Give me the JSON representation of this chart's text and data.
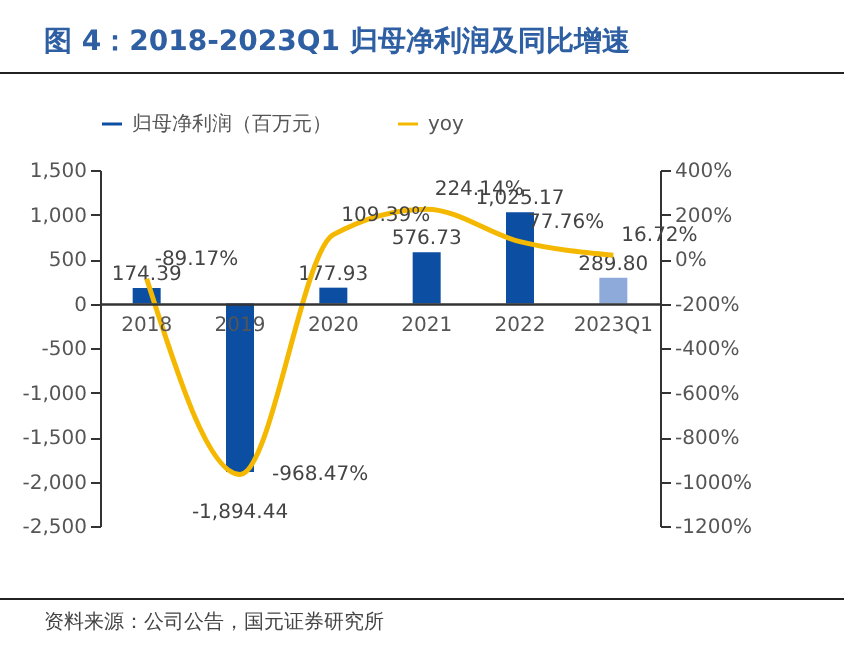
{
  "chart_data": {
    "type": "bar",
    "title": "图 4：2018-2023Q1 归母净利润及同比增速",
    "categories": [
      "2018",
      "2019",
      "2020",
      "2021",
      "2022",
      "2023Q1"
    ],
    "series": [
      {
        "name": "归母净利润（百万元）",
        "colors": [
          "#0b4ea2",
          "#0b4ea2",
          "#0b4ea2",
          "#0b4ea2",
          "#0b4ea2",
          "#8eaadb"
        ],
        "color": "#0b4ea2",
        "values": [
          174.39,
          -1894.44,
          177.93,
          576.73,
          1025.17,
          289.8
        ],
        "value_labels": [
          "174.39",
          "-1,894.44",
          "177.93",
          "576.73",
          "1,025.17",
          "289.80"
        ]
      },
      {
        "name": "yoy",
        "type": "line",
        "axis": "y2",
        "color": "#f5b800",
        "values": [
          -89.17,
          -968.47,
          109.39,
          224.14,
          77.76,
          16.72
        ],
        "value_labels": [
          "-89.17%",
          "-968.47%",
          "109.39%",
          "224.14%",
          "77.76%",
          "16.72%"
        ]
      }
    ],
    "ylim": [
      -2500,
      1500
    ],
    "yticks": [
      {
        "value": -2500,
        "label": "-2,500"
      },
      {
        "value": -2000,
        "label": "-2,000"
      },
      {
        "value": -1500,
        "label": "-1,500"
      },
      {
        "value": -1000,
        "label": "-1,000"
      },
      {
        "value": -500,
        "label": "-500"
      },
      0,
      500,
      {
        "value": 1000,
        "label": "1,000"
      },
      {
        "value": 1500,
        "label": "1,500"
      }
    ],
    "y2lim": [
      -1200,
      400
    ],
    "y2ticks": [
      {
        "value": -1200,
        "label": "-1200%"
      },
      {
        "value": -1000,
        "label": "-1000%"
      },
      {
        "value": -800,
        "label": "-800%"
      },
      {
        "value": -600,
        "label": "-600%"
      },
      {
        "value": -400,
        "label": "-400%"
      },
      {
        "value": -200,
        "label": "-200%"
      },
      {
        "value": 0,
        "label": "0%"
      },
      {
        "value": 200,
        "label": "200%"
      },
      {
        "value": 400,
        "label": "400%"
      }
    ],
    "legend": "top",
    "grid": false,
    "annotations": [
      "资料来源：公司公告，国元证券研究所"
    ]
  }
}
